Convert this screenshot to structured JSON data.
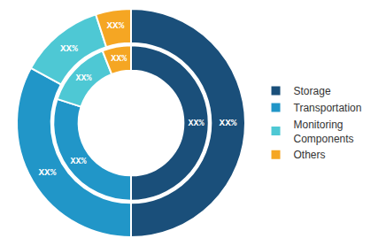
{
  "chart_data": {
    "type": "pie",
    "categories": [
      "Storage",
      "Transportation",
      "Monitoring\nComponents",
      "Others"
    ],
    "colors": [
      "#1a4f7a",
      "#2196c8",
      "#4ec8d4",
      "#f5a623"
    ],
    "series": [
      {
        "values": [
          50,
          33,
          12,
          5
        ],
        "value_labels": [
          "XX%",
          "XX%",
          "XX%",
          "XX%"
        ]
      },
      {
        "values": [
          50,
          30,
          14,
          6
        ],
        "value_labels": [
          "XX%",
          "XX%",
          "XX%",
          "XX%"
        ]
      }
    ],
    "legend": "right"
  }
}
